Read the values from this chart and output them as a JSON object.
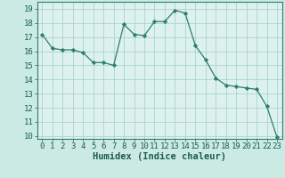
{
  "xlabel": "Humidex (Indice chaleur)",
  "x": [
    0,
    1,
    2,
    3,
    4,
    5,
    6,
    7,
    8,
    9,
    10,
    11,
    12,
    13,
    14,
    15,
    16,
    17,
    18,
    19,
    20,
    21,
    22,
    23
  ],
  "y": [
    17.2,
    16.2,
    16.1,
    16.1,
    15.9,
    15.2,
    15.2,
    15.0,
    17.9,
    17.2,
    17.1,
    18.1,
    18.1,
    18.9,
    18.7,
    16.4,
    15.4,
    14.1,
    13.6,
    13.5,
    13.4,
    13.3,
    12.1,
    9.9
  ],
  "line_color": "#2e7d6e",
  "marker": "D",
  "marker_size": 2.2,
  "bg_color": "#cceae4",
  "grid_color": "#aad4cc",
  "plot_bg": "#ddf2ee",
  "ylim": [
    9.8,
    19.5
  ],
  "yticks": [
    10,
    11,
    12,
    13,
    14,
    15,
    16,
    17,
    18,
    19
  ],
  "xlim": [
    -0.5,
    23.5
  ],
  "xticks": [
    0,
    1,
    2,
    3,
    4,
    5,
    6,
    7,
    8,
    9,
    10,
    11,
    12,
    13,
    14,
    15,
    16,
    17,
    18,
    19,
    20,
    21,
    22,
    23
  ],
  "xlabel_fontsize": 7.5,
  "tick_fontsize": 6.5
}
